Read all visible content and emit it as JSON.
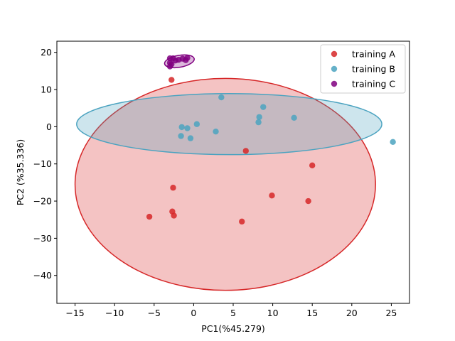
{
  "chart_data": {
    "type": "scatter",
    "title": "",
    "xlabel": "PC1(%45.279)",
    "ylabel": "PC2 (%35.336)",
    "xlim": [
      -17.3,
      27.3
    ],
    "ylim": [
      -47.5,
      23.0
    ],
    "xticks": [
      -15,
      -10,
      -5,
      0,
      5,
      10,
      15,
      20,
      25
    ],
    "yticks": [
      -40,
      -30,
      -20,
      -10,
      0,
      10,
      20
    ],
    "xtick_labels": [
      "−15",
      "−10",
      "−5",
      "0",
      "5",
      "10",
      "15",
      "20",
      "25"
    ],
    "ytick_labels": [
      "−40",
      "−30",
      "−20",
      "−10",
      "0",
      "10",
      "20"
    ],
    "grid": false,
    "legend_position": "top-right",
    "series": [
      {
        "name": "training A",
        "color": "#d62728",
        "points": [
          [
            -2.8,
            12.6
          ],
          [
            6.6,
            -6.5
          ],
          [
            15.0,
            -10.4
          ],
          [
            -2.6,
            -16.4
          ],
          [
            9.9,
            -18.5
          ],
          [
            14.5,
            -20.0
          ],
          [
            -2.7,
            -22.8
          ],
          [
            -2.5,
            -23.9
          ],
          [
            -5.6,
            -24.2
          ],
          [
            6.1,
            -25.5
          ]
        ],
        "ellipse": {
          "cx": 4.0,
          "cy": -15.5,
          "rx": 19.0,
          "ry": 28.5,
          "fill_opacity": 0.28
        }
      },
      {
        "name": "training B",
        "color": "#4ba3c0",
        "points": [
          [
            3.5,
            7.9
          ],
          [
            8.8,
            5.3
          ],
          [
            8.3,
            2.6
          ],
          [
            12.7,
            2.4
          ],
          [
            8.2,
            1.2
          ],
          [
            0.4,
            0.7
          ],
          [
            -1.5,
            -0.1
          ],
          [
            -0.8,
            -0.4
          ],
          [
            2.8,
            -1.3
          ],
          [
            -1.6,
            -2.5
          ],
          [
            -0.4,
            -3.1
          ],
          [
            25.2,
            -4.1
          ]
        ],
        "ellipse": {
          "cx": 4.5,
          "cy": 0.7,
          "rx": 19.3,
          "ry": 8.2,
          "fill_opacity": 0.28
        }
      },
      {
        "name": "training C",
        "color": "#800080",
        "points": [
          [
            -2.6,
            18.4
          ],
          [
            -1.4,
            18.3
          ],
          [
            -0.8,
            18.5
          ],
          [
            -1.9,
            18.0
          ],
          [
            -3.0,
            18.4
          ],
          [
            -2.3,
            17.8
          ],
          [
            -1.0,
            17.9
          ],
          [
            -3.0,
            17.2
          ],
          [
            -2.8,
            16.8
          ],
          [
            -3.0,
            16.2
          ]
        ],
        "ellipse": {
          "cx": -1.8,
          "cy": 17.6,
          "rx": 1.9,
          "ry": 1.6,
          "angle": 10,
          "fill_opacity": 0.28
        }
      }
    ]
  }
}
